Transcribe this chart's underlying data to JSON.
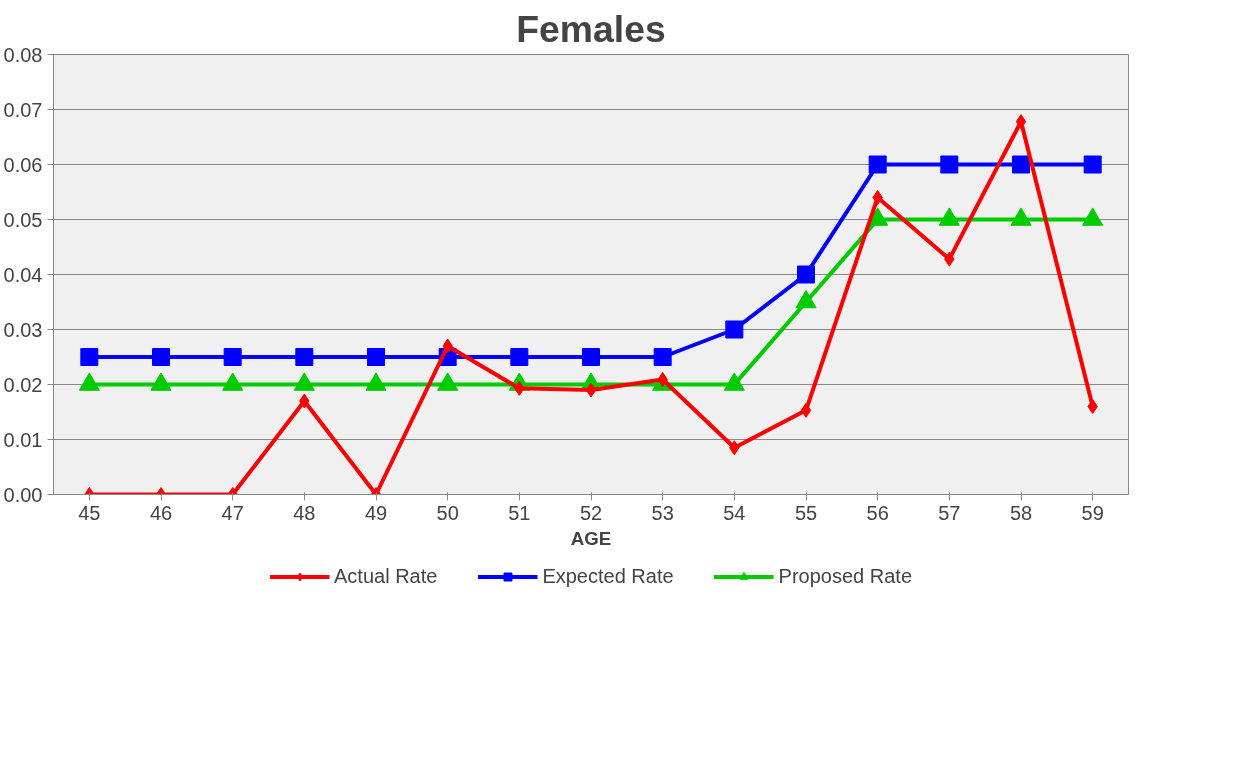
{
  "chart_data": {
    "type": "line",
    "title": "Females",
    "xlabel": "AGE",
    "categories": [
      "45",
      "46",
      "47",
      "48",
      "49",
      "50",
      "51",
      "52",
      "53",
      "54",
      "55",
      "56",
      "57",
      "58",
      "59"
    ],
    "ylim": [
      0,
      0.08
    ],
    "yticks": [
      {
        "value": 0,
        "label": "0.00"
      },
      {
        "value": 0.01,
        "label": "0.01"
      },
      {
        "value": 0.02,
        "label": "0.02"
      },
      {
        "value": 0.03,
        "label": "0.03"
      },
      {
        "value": 0.04,
        "label": "0.04"
      },
      {
        "value": 0.05,
        "label": "0.05"
      },
      {
        "value": 0.06,
        "label": "0.06"
      },
      {
        "value": 0.07,
        "label": "0.07"
      },
      {
        "value": 0.08,
        "label": "0.08"
      }
    ],
    "grid": "y",
    "legend": "bottom",
    "line_style": "solid",
    "series": [
      {
        "name": "Actual Rate",
        "color": "#ff0000",
        "marker": "diamond",
        "values": [
          0,
          0,
          0,
          0.017,
          0,
          0.027,
          0.0193,
          0.019,
          0.0209,
          0.0085,
          0.0153,
          0.054,
          0.0428,
          0.0678,
          0.016
        ]
      },
      {
        "name": "Expected Rate",
        "color": "#0000ff",
        "marker": "square",
        "values": [
          0.025,
          0.025,
          0.025,
          0.025,
          0.025,
          0.025,
          0.025,
          0.025,
          0.025,
          0.03,
          0.04,
          0.06,
          0.06,
          0.06,
          0.06
        ]
      },
      {
        "name": "Proposed Rate",
        "color": "#00cc00",
        "marker": "triangle",
        "values": [
          0.02,
          0.02,
          0.02,
          0.02,
          0.02,
          0.02,
          0.02,
          0.02,
          0.02,
          0.02,
          0.035,
          0.05,
          0.05,
          0.05,
          0.05
        ]
      }
    ]
  }
}
